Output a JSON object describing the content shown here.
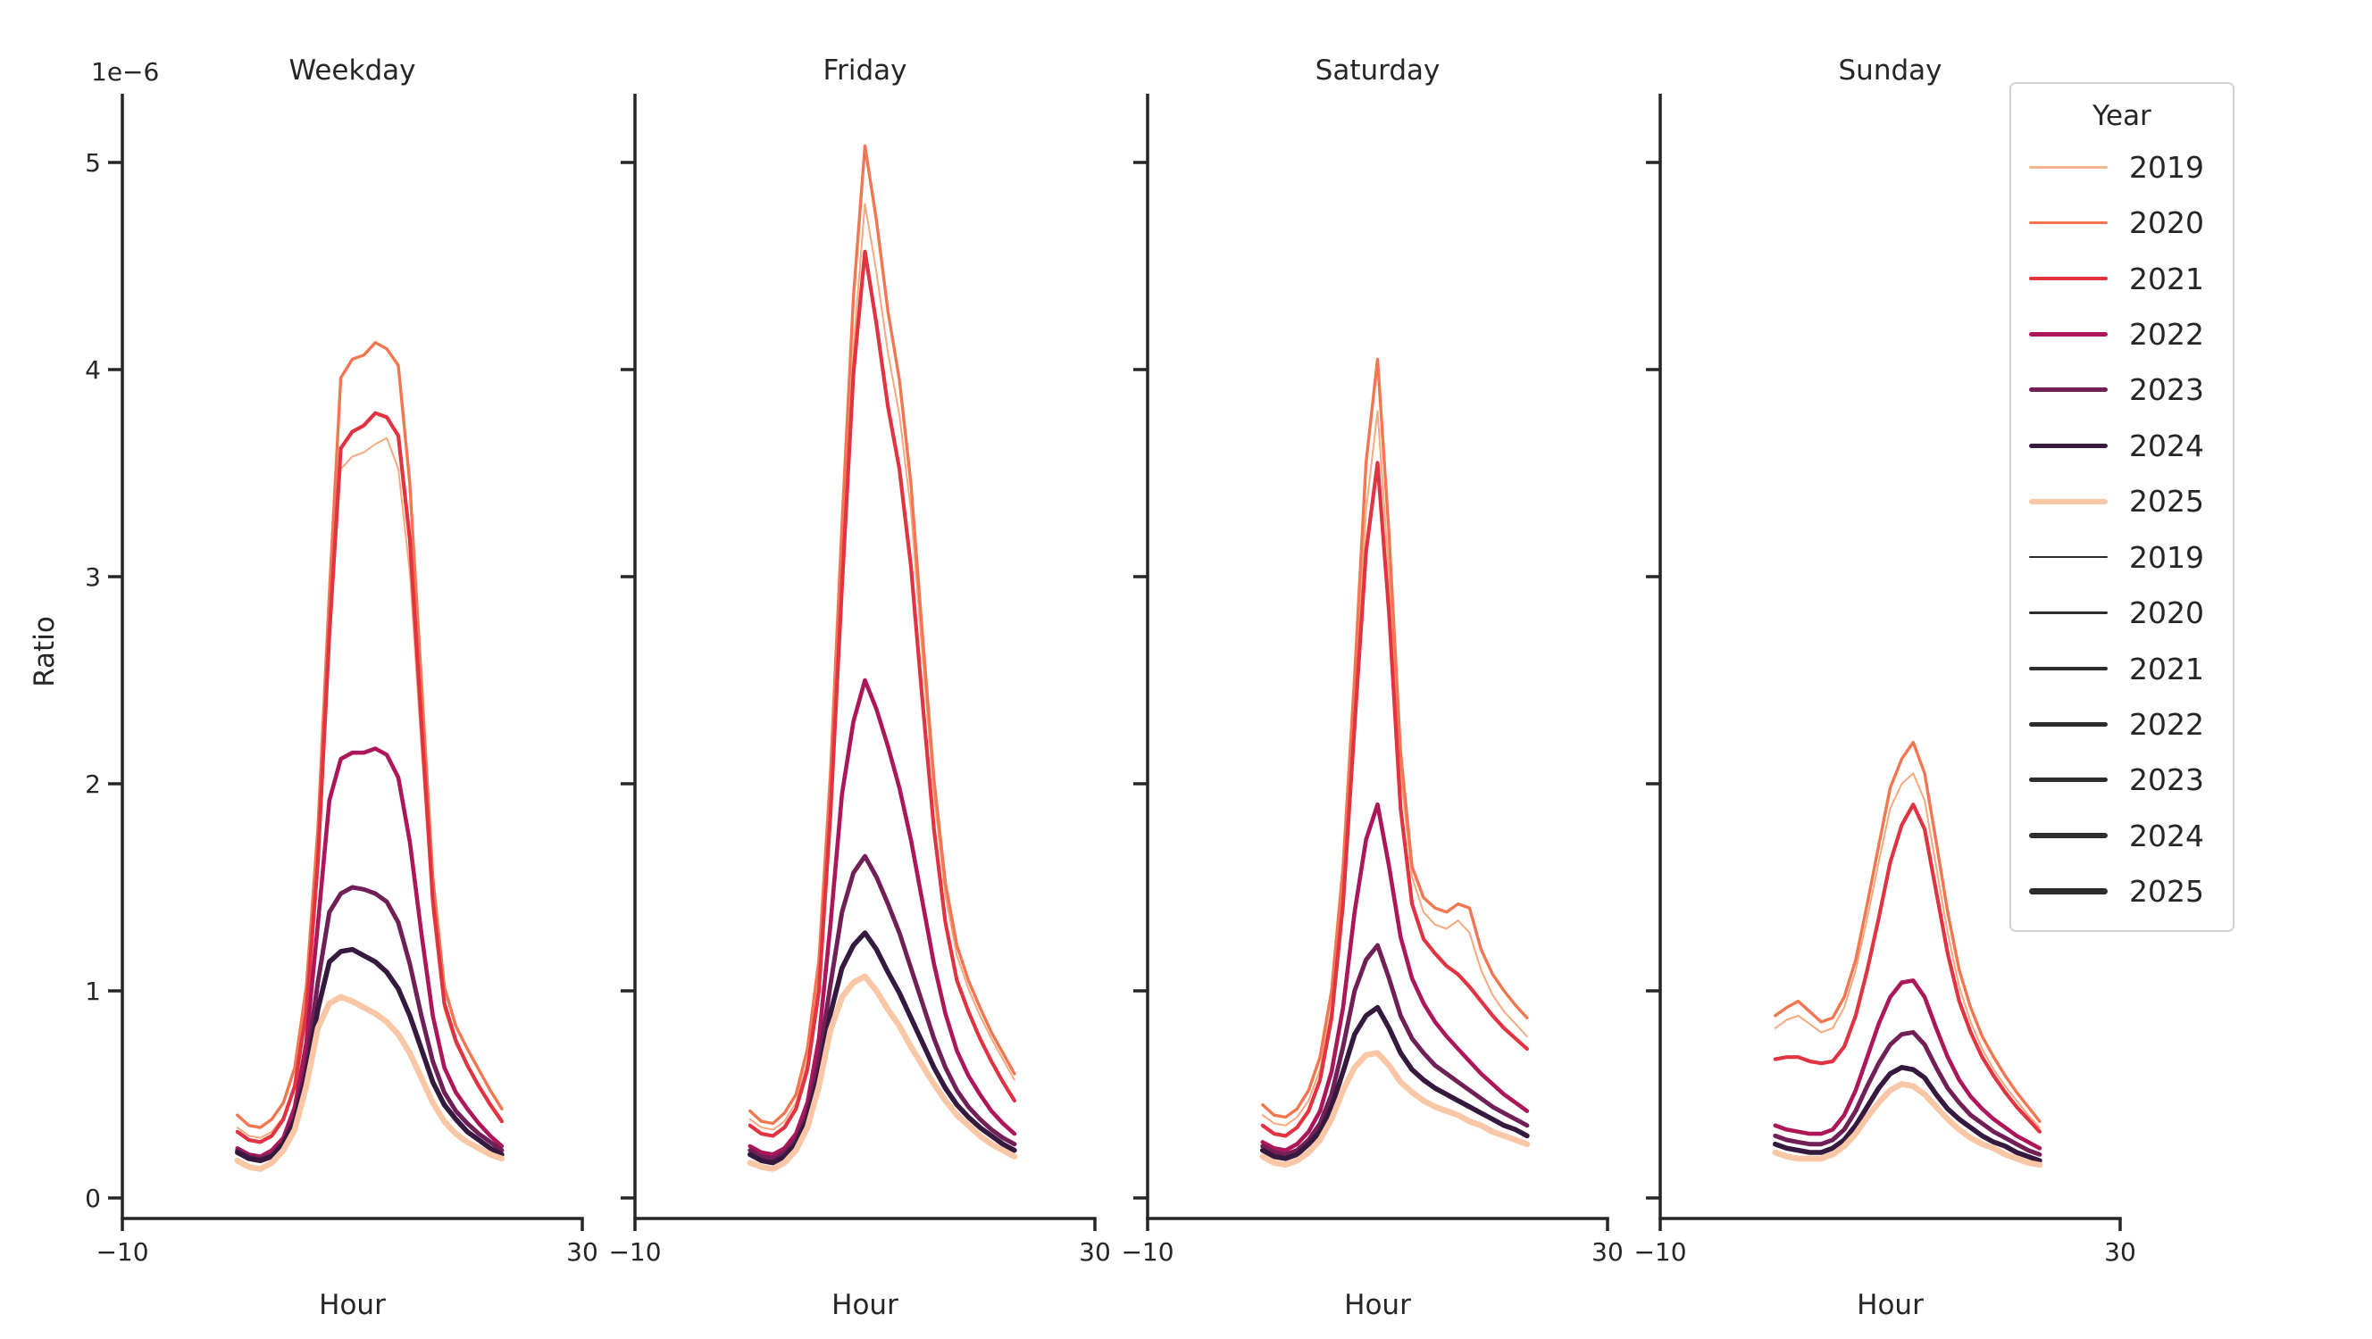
{
  "figure": {
    "background": "#ffffff"
  },
  "text": {
    "ylabel": "Ratio",
    "xlabel": "Hour",
    "offset_label": "1e−6",
    "xtick_labels": [
      "−10",
      "30"
    ],
    "y_tick_labels": [
      "0",
      "1",
      "2",
      "3",
      "4",
      "5"
    ]
  },
  "legend": {
    "title": "Year",
    "entries": [
      {
        "label": "2019",
        "type": "color",
        "color": "#f6b48f",
        "width": 3
      },
      {
        "label": "2020",
        "type": "color",
        "color": "#f37651",
        "width": 3.6
      },
      {
        "label": "2021",
        "type": "color",
        "color": "#e13342",
        "width": 4
      },
      {
        "label": "2022",
        "type": "color",
        "color": "#ad1759",
        "width": 4.6
      },
      {
        "label": "2023",
        "type": "color",
        "color": "#701f57",
        "width": 5
      },
      {
        "label": "2024",
        "type": "color",
        "color": "#35193e",
        "width": 5.5
      },
      {
        "label": "2025",
        "type": "color",
        "color": "#f9c7a6",
        "width": 6
      },
      {
        "label": "2019",
        "type": "size",
        "color": "#2d2d2d",
        "width": 1.6
      },
      {
        "label": "2020",
        "type": "size",
        "color": "#2d2d2d",
        "width": 2.6
      },
      {
        "label": "2021",
        "type": "size",
        "color": "#2d2d2d",
        "width": 3.4
      },
      {
        "label": "2022",
        "type": "size",
        "color": "#2d2d2d",
        "width": 4.4
      },
      {
        "label": "2023",
        "type": "size",
        "color": "#2d2d2d",
        "width": 5.2
      },
      {
        "label": "2024",
        "type": "size",
        "color": "#2d2d2d",
        "width": 6.2
      },
      {
        "label": "2025",
        "type": "size",
        "color": "#2d2d2d",
        "width": 7.2
      }
    ]
  },
  "chart_data": {
    "type": "line",
    "xlabel": "Hour",
    "ylabel": "Ratio",
    "value_units": "1e-6",
    "xlim": [
      -10,
      30
    ],
    "ylim_units_1e6": [
      0,
      5.33
    ],
    "x_ticks": [
      -10,
      30
    ],
    "y_ticks": [
      0,
      1,
      2,
      3,
      4,
      5
    ],
    "grid": false,
    "legend_position": "upper right",
    "hue_encoding": "Year (color)",
    "size_encoding": "Year (line width)",
    "hours": [
      0,
      1,
      2,
      3,
      4,
      5,
      6,
      7,
      8,
      9,
      10,
      11,
      12,
      13,
      14,
      15,
      16,
      17,
      18,
      19,
      20,
      21,
      22,
      23
    ],
    "series_order": [
      "2019",
      "2020",
      "2021",
      "2022",
      "2023",
      "2024",
      "2025"
    ],
    "series_colors": {
      "2019": "#f6a87e",
      "2020": "#f37651",
      "2021": "#e13342",
      "2022": "#ad1759",
      "2023": "#701f57",
      "2024": "#35193e",
      "2025": "#f9c7a6"
    },
    "series_line_widths": {
      "2019": 2.0,
      "2020": 3.4,
      "2021": 4.2,
      "2022": 4.6,
      "2023": 5.0,
      "2024": 5.6,
      "2025": 6.6
    },
    "panels": [
      {
        "title": "Weekday",
        "values_by_year_1e6": {
          "2019": [
            0.34,
            0.3,
            0.29,
            0.32,
            0.39,
            0.54,
            0.88,
            1.58,
            2.68,
            3.52,
            3.58,
            3.6,
            3.64,
            3.67,
            3.52,
            3.02,
            2.18,
            1.38,
            0.91,
            0.74,
            0.64,
            0.55,
            0.46,
            0.38
          ],
          "2020": [
            0.4,
            0.35,
            0.34,
            0.38,
            0.46,
            0.63,
            1.02,
            1.78,
            2.92,
            3.96,
            4.05,
            4.07,
            4.13,
            4.1,
            4.02,
            3.45,
            2.5,
            1.55,
            1.02,
            0.83,
            0.72,
            0.62,
            0.52,
            0.43
          ],
          "2021": [
            0.32,
            0.28,
            0.27,
            0.3,
            0.38,
            0.54,
            0.9,
            1.62,
            2.72,
            3.62,
            3.7,
            3.73,
            3.79,
            3.77,
            3.68,
            3.18,
            2.3,
            1.44,
            0.94,
            0.76,
            0.64,
            0.54,
            0.45,
            0.37
          ],
          "2022": [
            0.24,
            0.21,
            0.2,
            0.23,
            0.29,
            0.44,
            0.75,
            1.32,
            1.92,
            2.12,
            2.15,
            2.15,
            2.17,
            2.14,
            2.03,
            1.72,
            1.28,
            0.88,
            0.63,
            0.51,
            0.43,
            0.36,
            0.3,
            0.25
          ],
          "2023": [
            0.23,
            0.2,
            0.19,
            0.21,
            0.27,
            0.39,
            0.64,
            1.04,
            1.38,
            1.47,
            1.5,
            1.49,
            1.47,
            1.43,
            1.33,
            1.13,
            0.88,
            0.66,
            0.51,
            0.42,
            0.36,
            0.31,
            0.27,
            0.23
          ],
          "2024": [
            0.22,
            0.19,
            0.18,
            0.2,
            0.26,
            0.37,
            0.59,
            0.91,
            1.14,
            1.19,
            1.2,
            1.17,
            1.14,
            1.09,
            1.01,
            0.88,
            0.72,
            0.56,
            0.45,
            0.38,
            0.32,
            0.28,
            0.24,
            0.21
          ],
          "2025": [
            0.18,
            0.15,
            0.14,
            0.17,
            0.23,
            0.33,
            0.54,
            0.82,
            0.94,
            0.97,
            0.95,
            0.92,
            0.89,
            0.85,
            0.79,
            0.7,
            0.58,
            0.46,
            0.37,
            0.31,
            0.27,
            0.24,
            0.21,
            0.19
          ]
        }
      },
      {
        "title": "Friday",
        "values_by_year_1e6": {
          "2019": [
            0.38,
            0.34,
            0.33,
            0.37,
            0.46,
            0.66,
            1.06,
            1.92,
            3.05,
            4.1,
            4.8,
            4.47,
            4.08,
            3.78,
            3.32,
            2.62,
            1.95,
            1.46,
            1.17,
            1.01,
            0.88,
            0.77,
            0.67,
            0.57
          ],
          "2020": [
            0.42,
            0.37,
            0.36,
            0.41,
            0.5,
            0.72,
            1.15,
            2.05,
            3.25,
            4.35,
            5.08,
            4.72,
            4.28,
            3.95,
            3.45,
            2.72,
            2.02,
            1.52,
            1.22,
            1.05,
            0.92,
            0.8,
            0.7,
            0.6
          ],
          "2021": [
            0.35,
            0.31,
            0.3,
            0.34,
            0.43,
            0.62,
            1.0,
            1.85,
            2.95,
            3.98,
            4.57,
            4.22,
            3.82,
            3.52,
            3.05,
            2.4,
            1.78,
            1.33,
            1.05,
            0.9,
            0.77,
            0.66,
            0.56,
            0.47
          ],
          "2022": [
            0.25,
            0.22,
            0.21,
            0.24,
            0.31,
            0.46,
            0.77,
            1.32,
            1.95,
            2.3,
            2.5,
            2.36,
            2.18,
            1.98,
            1.73,
            1.43,
            1.13,
            0.89,
            0.71,
            0.59,
            0.5,
            0.42,
            0.36,
            0.31
          ],
          "2023": [
            0.23,
            0.2,
            0.19,
            0.22,
            0.28,
            0.41,
            0.66,
            1.03,
            1.38,
            1.57,
            1.65,
            1.55,
            1.42,
            1.28,
            1.11,
            0.94,
            0.77,
            0.63,
            0.52,
            0.44,
            0.38,
            0.33,
            0.29,
            0.26
          ],
          "2024": [
            0.21,
            0.18,
            0.17,
            0.2,
            0.26,
            0.38,
            0.59,
            0.89,
            1.11,
            1.22,
            1.28,
            1.2,
            1.09,
            0.99,
            0.87,
            0.75,
            0.63,
            0.53,
            0.45,
            0.39,
            0.34,
            0.3,
            0.26,
            0.23
          ],
          "2025": [
            0.17,
            0.15,
            0.14,
            0.17,
            0.23,
            0.34,
            0.54,
            0.81,
            0.97,
            1.04,
            1.07,
            1.0,
            0.91,
            0.83,
            0.73,
            0.64,
            0.55,
            0.47,
            0.4,
            0.35,
            0.3,
            0.26,
            0.23,
            0.2
          ]
        }
      },
      {
        "title": "Saturday",
        "values_by_year_1e6": {
          "2019": [
            0.4,
            0.36,
            0.35,
            0.39,
            0.47,
            0.62,
            0.92,
            1.48,
            2.35,
            3.32,
            3.8,
            3.0,
            2.05,
            1.55,
            1.38,
            1.32,
            1.3,
            1.34,
            1.28,
            1.1,
            0.98,
            0.9,
            0.84,
            0.78
          ],
          "2020": [
            0.45,
            0.4,
            0.39,
            0.43,
            0.52,
            0.68,
            1.0,
            1.6,
            2.52,
            3.55,
            4.05,
            3.2,
            2.15,
            1.6,
            1.45,
            1.4,
            1.38,
            1.42,
            1.4,
            1.2,
            1.08,
            1.0,
            0.93,
            0.87
          ],
          "2021": [
            0.35,
            0.31,
            0.3,
            0.34,
            0.42,
            0.57,
            0.87,
            1.42,
            2.28,
            3.12,
            3.55,
            2.82,
            1.88,
            1.42,
            1.25,
            1.18,
            1.12,
            1.08,
            1.02,
            0.95,
            0.88,
            0.82,
            0.77,
            0.72
          ],
          "2022": [
            0.27,
            0.24,
            0.23,
            0.26,
            0.32,
            0.42,
            0.61,
            0.92,
            1.38,
            1.73,
            1.9,
            1.6,
            1.26,
            1.06,
            0.94,
            0.85,
            0.78,
            0.72,
            0.66,
            0.6,
            0.55,
            0.5,
            0.46,
            0.42
          ],
          "2023": [
            0.25,
            0.22,
            0.21,
            0.23,
            0.28,
            0.36,
            0.5,
            0.73,
            1.0,
            1.15,
            1.22,
            1.06,
            0.88,
            0.77,
            0.7,
            0.64,
            0.6,
            0.56,
            0.52,
            0.48,
            0.44,
            0.41,
            0.38,
            0.35
          ],
          "2024": [
            0.23,
            0.2,
            0.19,
            0.21,
            0.26,
            0.32,
            0.44,
            0.61,
            0.79,
            0.88,
            0.92,
            0.82,
            0.7,
            0.62,
            0.57,
            0.53,
            0.5,
            0.47,
            0.44,
            0.41,
            0.38,
            0.35,
            0.33,
            0.3
          ],
          "2025": [
            0.2,
            0.17,
            0.16,
            0.18,
            0.22,
            0.28,
            0.38,
            0.52,
            0.63,
            0.69,
            0.7,
            0.64,
            0.56,
            0.51,
            0.47,
            0.44,
            0.42,
            0.4,
            0.37,
            0.35,
            0.32,
            0.3,
            0.28,
            0.26
          ]
        }
      },
      {
        "title": "Sunday",
        "values_by_year_1e6": {
          "2019": [
            0.82,
            0.86,
            0.88,
            0.84,
            0.8,
            0.82,
            0.92,
            1.1,
            1.35,
            1.62,
            1.88,
            2.0,
            2.05,
            1.92,
            1.6,
            1.28,
            1.02,
            0.85,
            0.72,
            0.62,
            0.54,
            0.47,
            0.4,
            0.34
          ],
          "2020": [
            0.88,
            0.92,
            0.95,
            0.9,
            0.85,
            0.87,
            0.97,
            1.15,
            1.42,
            1.7,
            1.98,
            2.12,
            2.2,
            2.05,
            1.72,
            1.38,
            1.1,
            0.92,
            0.78,
            0.68,
            0.59,
            0.51,
            0.44,
            0.37
          ],
          "2021": [
            0.67,
            0.68,
            0.68,
            0.66,
            0.65,
            0.66,
            0.73,
            0.88,
            1.1,
            1.35,
            1.62,
            1.8,
            1.9,
            1.78,
            1.48,
            1.18,
            0.95,
            0.8,
            0.68,
            0.59,
            0.51,
            0.44,
            0.38,
            0.32
          ],
          "2022": [
            0.35,
            0.33,
            0.32,
            0.31,
            0.31,
            0.33,
            0.4,
            0.52,
            0.68,
            0.84,
            0.97,
            1.04,
            1.05,
            0.97,
            0.82,
            0.68,
            0.57,
            0.49,
            0.43,
            0.38,
            0.34,
            0.3,
            0.27,
            0.24
          ],
          "2023": [
            0.3,
            0.28,
            0.27,
            0.26,
            0.26,
            0.28,
            0.33,
            0.42,
            0.54,
            0.65,
            0.74,
            0.79,
            0.8,
            0.74,
            0.63,
            0.53,
            0.46,
            0.4,
            0.36,
            0.32,
            0.29,
            0.26,
            0.23,
            0.21
          ],
          "2024": [
            0.26,
            0.24,
            0.23,
            0.22,
            0.22,
            0.24,
            0.28,
            0.35,
            0.44,
            0.53,
            0.6,
            0.63,
            0.62,
            0.58,
            0.5,
            0.43,
            0.38,
            0.34,
            0.3,
            0.27,
            0.25,
            0.22,
            0.2,
            0.18
          ],
          "2025": [
            0.22,
            0.2,
            0.19,
            0.19,
            0.19,
            0.21,
            0.25,
            0.31,
            0.39,
            0.46,
            0.52,
            0.55,
            0.54,
            0.5,
            0.44,
            0.38,
            0.33,
            0.29,
            0.26,
            0.24,
            0.21,
            0.19,
            0.17,
            0.16
          ]
        }
      }
    ]
  }
}
